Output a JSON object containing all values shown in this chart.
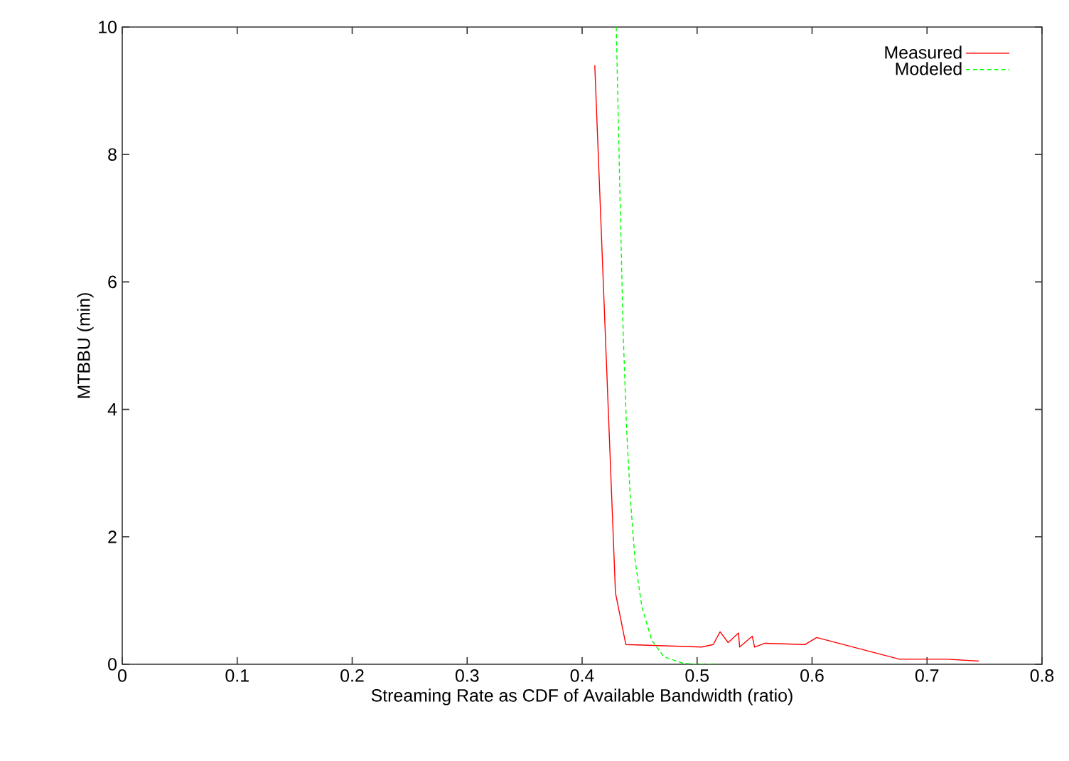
{
  "chart_data": {
    "type": "line",
    "xlabel": "Streaming Rate as CDF of Available Bandwidth (ratio)",
    "ylabel": "MTBBU (min)",
    "xlim": [
      0,
      0.8
    ],
    "ylim": [
      0,
      10
    ],
    "xticks": [
      0,
      0.1,
      0.2,
      0.3,
      0.4,
      0.5,
      0.6,
      0.7,
      0.8
    ],
    "yticks": [
      0,
      2,
      4,
      6,
      8,
      10
    ],
    "grid": false,
    "legend": "top right",
    "series": [
      {
        "name": "Measured",
        "color": "#ff0000",
        "line_style": "solid",
        "x": [
          0.411,
          0.429,
          0.438,
          0.504,
          0.514,
          0.52,
          0.527,
          0.536,
          0.537,
          0.548,
          0.55,
          0.559,
          0.594,
          0.604,
          0.676,
          0.718,
          0.745
        ],
        "values": [
          9.4,
          1.12,
          0.31,
          0.27,
          0.31,
          0.51,
          0.34,
          0.49,
          0.27,
          0.44,
          0.27,
          0.33,
          0.31,
          0.42,
          0.08,
          0.08,
          0.05
        ]
      },
      {
        "name": "Modeled",
        "color": "#00ff00",
        "line_style": "dashed",
        "x": [
          0.4297,
          0.4328,
          0.4357,
          0.4386,
          0.4419,
          0.446,
          0.452,
          0.4605,
          0.471,
          0.487,
          0.4995,
          0.516
        ],
        "values": [
          10,
          7.45,
          5.21,
          3.73,
          2.61,
          1.64,
          0.9,
          0.38,
          0.12,
          0.02,
          0,
          0
        ]
      }
    ]
  }
}
